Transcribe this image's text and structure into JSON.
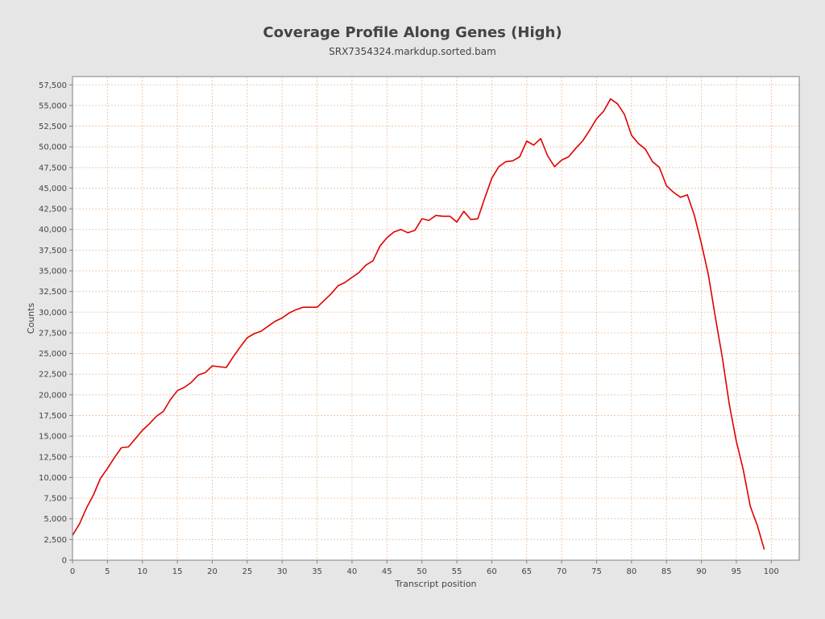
{
  "chart_data": {
    "type": "line",
    "title": "Coverage Profile Along Genes (High)",
    "subtitle": "SRX7354324.markdup.sorted.bam",
    "xlabel": "Transcript position",
    "ylabel": "Counts",
    "xlim": [
      0,
      104
    ],
    "ylim": [
      0,
      58500
    ],
    "xticks": [
      0,
      5,
      10,
      15,
      20,
      25,
      30,
      35,
      40,
      45,
      50,
      55,
      60,
      65,
      70,
      75,
      80,
      85,
      90,
      95,
      100
    ],
    "yticks": [
      0,
      2500,
      5000,
      7500,
      10000,
      12500,
      15000,
      17500,
      20000,
      22500,
      25000,
      27500,
      30000,
      32500,
      35000,
      37500,
      40000,
      42500,
      45000,
      47500,
      50000,
      52500,
      55000,
      57500
    ],
    "grid": true,
    "colors": {
      "line": "#e00000",
      "grid": "#f0c8a8",
      "plot_background": "#ffffff",
      "page_background": "#e6e6e6",
      "axis": "#808080"
    },
    "series": [
      {
        "x": [
          0,
          1,
          2,
          3,
          4,
          5,
          6,
          7,
          8,
          9,
          10,
          11,
          12,
          13,
          14,
          15,
          16,
          17,
          18,
          19,
          20,
          21,
          22,
          23,
          24,
          25,
          26,
          27,
          28,
          29,
          30,
          31,
          32,
          33,
          34,
          35,
          36,
          37,
          38,
          39,
          40,
          41,
          42,
          43,
          44,
          45,
          46,
          47,
          48,
          49,
          50,
          51,
          52,
          53,
          54,
          55,
          56,
          57,
          58,
          59,
          60,
          61,
          62,
          63,
          64,
          65,
          66,
          67,
          68,
          69,
          70,
          71,
          72,
          73,
          74,
          75,
          76,
          77,
          78,
          79,
          80,
          81,
          82,
          83,
          84,
          85,
          86,
          87,
          88,
          89,
          90,
          91,
          92,
          93,
          94,
          95,
          96,
          97,
          98,
          99
        ],
        "values": [
          3000,
          4400,
          6300,
          7900,
          9900,
          11100,
          12400,
          13600,
          13700,
          14700,
          15700,
          16500,
          17400,
          18000,
          19400,
          20500,
          20900,
          21500,
          22400,
          22700,
          23500,
          23400,
          23300,
          24600,
          25800,
          26900,
          27400,
          27700,
          28300,
          28900,
          29300,
          29900,
          30300,
          30600,
          30600,
          30600,
          31400,
          32200,
          33200,
          33600,
          34200,
          34800,
          35700,
          36200,
          38000,
          39000,
          39700,
          40000,
          39600,
          39900,
          41300,
          41100,
          41700,
          41600,
          41600,
          40900,
          42200,
          41200,
          41300,
          43800,
          46200,
          47600,
          48200,
          48300,
          48800,
          50700,
          50200,
          51000,
          48900,
          47600,
          48400,
          48800,
          49800,
          50700,
          52000,
          53400,
          54300,
          55800,
          55200,
          53900,
          51400,
          50400,
          49700,
          48200,
          47500,
          45300,
          44500,
          43900,
          44200,
          41700,
          38300,
          34500,
          29400,
          24500,
          18800,
          14400,
          10900,
          6500,
          4200,
          1300
        ]
      }
    ]
  }
}
